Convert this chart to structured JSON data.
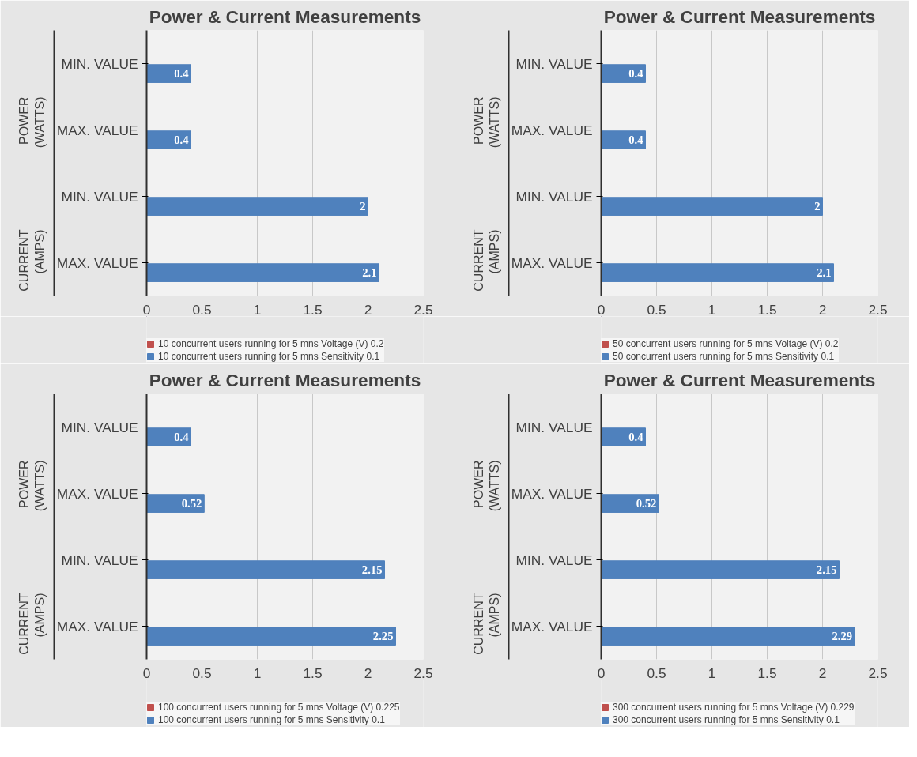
{
  "chart_data": [
    {
      "type": "bar",
      "orientation": "horizontal",
      "title": "Power & Current Measurements",
      "categories": [
        "MIN. VALUE",
        "MAX. VALUE",
        "MIN. VALUE",
        "MAX. VALUE"
      ],
      "annotations": [
        "POWER (WATTS)",
        "CURRENT (AMPS)"
      ],
      "xlim": [
        0,
        2.5
      ],
      "xticks": [
        0,
        0.5,
        1,
        1.5,
        2,
        2.5
      ],
      "grid": "x",
      "legend": "bottom",
      "data_labels": true,
      "series": [
        {
          "name": "10 concurrent users running for 5 mns Voltage (V) 0.2",
          "color": "#c0504d",
          "values": [
            null,
            null,
            null,
            null
          ]
        },
        {
          "name": "10 concurrent users running for 5 mns Sensitivity 0.1",
          "color": "#4f81bd",
          "values": [
            0.4,
            0.4,
            2,
            2.1
          ]
        }
      ]
    },
    {
      "type": "bar",
      "orientation": "horizontal",
      "title": "Power & Current Measurements",
      "categories": [
        "MIN. VALUE",
        "MAX. VALUE",
        "MIN. VALUE",
        "MAX. VALUE"
      ],
      "annotations": [
        "POWER (WATTS)",
        "CURRENT (AMPS)"
      ],
      "xlim": [
        0,
        2.5
      ],
      "xticks": [
        0,
        0.5,
        1,
        1.5,
        2,
        2.5
      ],
      "grid": "x",
      "legend": "bottom",
      "data_labels": true,
      "series": [
        {
          "name": "50 concurrent users running for 5 mns Voltage (V) 0.2",
          "color": "#c0504d",
          "values": [
            null,
            null,
            null,
            null
          ]
        },
        {
          "name": "50 concurrent users running for 5 mns Sensitivity 0.1",
          "color": "#4f81bd",
          "values": [
            0.4,
            0.4,
            2,
            2.1
          ]
        }
      ]
    },
    {
      "type": "bar",
      "orientation": "horizontal",
      "title": "Power & Current Measurements",
      "categories": [
        "MIN. VALUE",
        "MAX. VALUE",
        "MIN. VALUE",
        "MAX. VALUE"
      ],
      "annotations": [
        "POWER (WATTS)",
        "CURRENT (AMPS)"
      ],
      "xlim": [
        0,
        2.5
      ],
      "xticks": [
        0,
        0.5,
        1,
        1.5,
        2,
        2.5
      ],
      "grid": "x",
      "legend": "bottom",
      "data_labels": true,
      "series": [
        {
          "name": "100 concurrent users running for 5 mns Voltage (V) 0.225",
          "color": "#c0504d",
          "values": [
            null,
            null,
            null,
            null
          ]
        },
        {
          "name": "100 concurrent users running for 5 mns Sensitivity 0.1",
          "color": "#4f81bd",
          "values": [
            0.4,
            0.52,
            2.15,
            2.25
          ]
        }
      ]
    },
    {
      "type": "bar",
      "orientation": "horizontal",
      "title": "Power & Current Measurements",
      "categories": [
        "MIN. VALUE",
        "MAX. VALUE",
        "MIN. VALUE",
        "MAX. VALUE"
      ],
      "annotations": [
        "POWER (WATTS)",
        "CURRENT (AMPS)"
      ],
      "xlim": [
        0,
        2.5
      ],
      "xticks": [
        0,
        0.5,
        1,
        1.5,
        2,
        2.5
      ],
      "grid": "x",
      "legend": "bottom",
      "data_labels": true,
      "series": [
        {
          "name": "300 concurrent users running for 5 mns Voltage (V) 0.229",
          "color": "#c0504d",
          "values": [
            null,
            null,
            null,
            null
          ]
        },
        {
          "name": "300 concurrent users running for 5 mns Sensitivity 0.1",
          "color": "#4f81bd",
          "values": [
            0.4,
            0.52,
            2.15,
            2.29
          ]
        }
      ]
    }
  ]
}
